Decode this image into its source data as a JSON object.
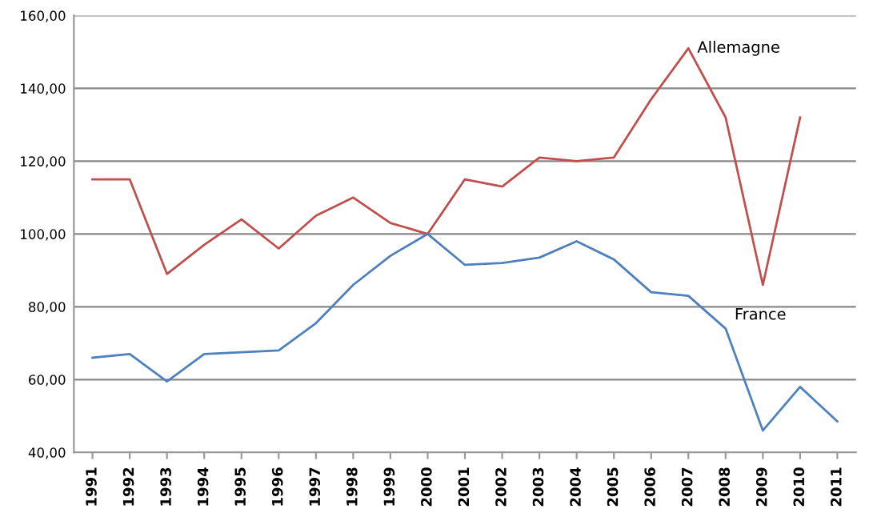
{
  "chart_data": {
    "type": "line",
    "categories": [
      "1991",
      "1992",
      "1993",
      "1994",
      "1995",
      "1996",
      "1997",
      "1998",
      "1999",
      "2000",
      "2001",
      "2002",
      "2003",
      "2004",
      "2005",
      "2006",
      "2007",
      "2008",
      "2009",
      "2010",
      "2011"
    ],
    "series": [
      {
        "name": "Allemagne",
        "color": "#c0504d",
        "values": [
          115,
          115,
          89,
          97,
          104,
          96,
          105,
          110,
          103,
          100,
          115,
          113,
          121,
          120,
          121,
          137,
          151,
          132,
          86,
          132,
          null
        ]
      },
      {
        "name": "France",
        "color": "#4f81bd",
        "values": [
          66,
          67,
          59.5,
          67,
          67.5,
          68,
          75.5,
          86,
          94,
          100,
          91.5,
          92,
          93.5,
          98,
          93,
          84,
          83,
          74,
          46,
          58,
          48.5
        ]
      }
    ],
    "ylim": [
      40,
      160
    ],
    "yticks": [
      {
        "value": 40,
        "label": "40,00"
      },
      {
        "value": 60,
        "label": "60,00"
      },
      {
        "value": 80,
        "label": "80,00"
      },
      {
        "value": 100,
        "label": "100,00"
      },
      {
        "value": 120,
        "label": "120,00"
      },
      {
        "value": 140,
        "label": "140,00"
      },
      {
        "value": 160,
        "label": "160,00"
      }
    ],
    "grid": "y",
    "marker": "none",
    "line_style": "solid",
    "legend": false
  }
}
